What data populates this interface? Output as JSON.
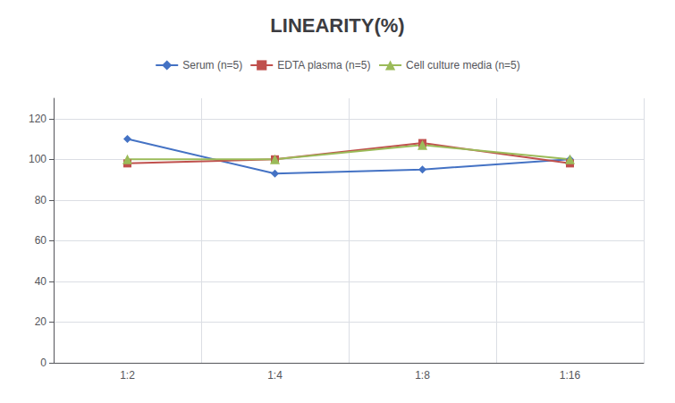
{
  "chart_data": {
    "type": "line",
    "title": "LINEARITY(%)",
    "categories": [
      "1:2",
      "1:4",
      "1:8",
      "1:16"
    ],
    "series": [
      {
        "name": "Serum (n=5)",
        "color": "#4472C4",
        "marker": "diamond",
        "values": [
          110,
          93,
          95,
          100
        ]
      },
      {
        "name": "EDTA plasma (n=5)",
        "color": "#C0504D",
        "marker": "square",
        "values": [
          98,
          100,
          108,
          98
        ]
      },
      {
        "name": "Cell culture media (n=5)",
        "color": "#9BBB59",
        "marker": "triangle",
        "values": [
          100,
          100,
          107,
          100
        ]
      }
    ],
    "ylim": [
      0,
      130
    ],
    "yticks": [
      0,
      20,
      40,
      60,
      80,
      100,
      120
    ],
    "grid": true,
    "legend": "top"
  }
}
